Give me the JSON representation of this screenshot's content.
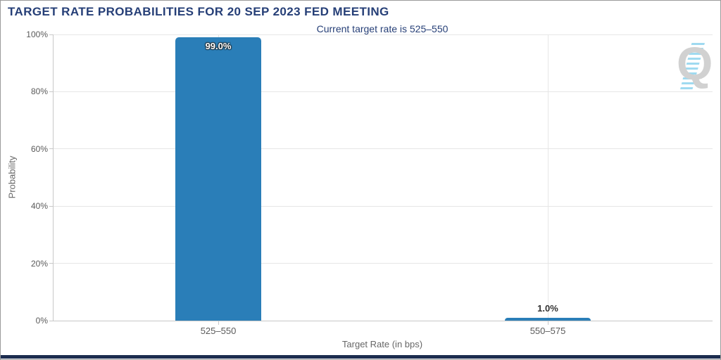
{
  "logo": {
    "letter": "Q"
  },
  "chart_data": {
    "type": "bar",
    "title": "TARGET RATE PROBABILITIES FOR 20 SEP 2023 FED MEETING",
    "subtitle": "Current target rate is 525–550",
    "categories": [
      "525–550",
      "550–575"
    ],
    "values": [
      99.0,
      1.0
    ],
    "value_labels": [
      "99.0%",
      "1.0%"
    ],
    "xlabel": "Target Rate (in bps)",
    "ylabel": "Probability",
    "ylim": [
      0,
      100
    ],
    "ytick_step": 20,
    "ytick_labels": [
      "0%",
      "20%",
      "40%",
      "60%",
      "80%",
      "100%"
    ],
    "grid": true,
    "legend": false,
    "colors": {
      "bar": "#2a7eb8",
      "title": "#263f77",
      "axis_text": "#5a5a5a",
      "grid_line": "#e6e6e6",
      "axis_line": "#c8c8c8",
      "bottom_bar": "#1c2d4f",
      "logo_stripes": "#8fd4ee",
      "logo_letter": "#c9c9c9"
    }
  }
}
